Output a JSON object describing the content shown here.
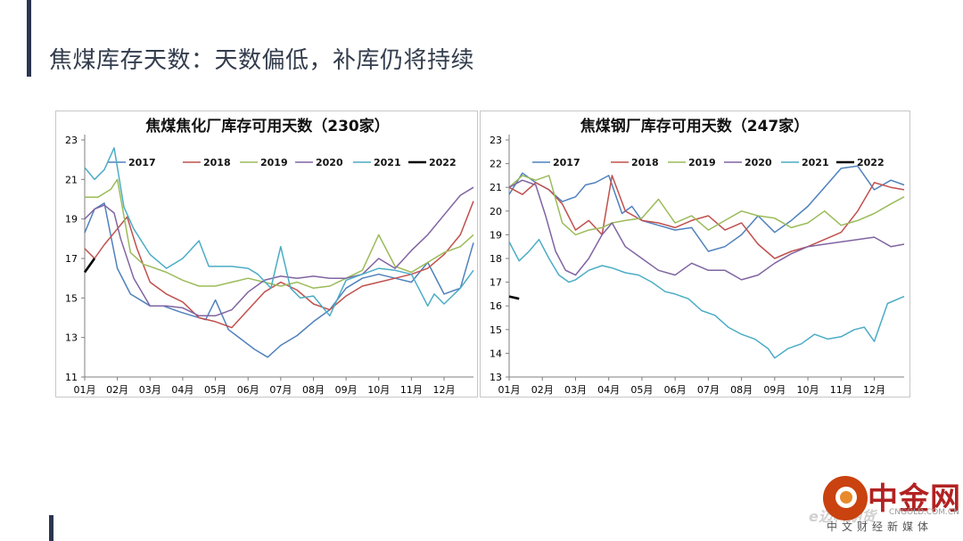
{
  "page": {
    "title": "焦煤库存天数：天数偏低，补库仍将持续"
  },
  "watermark": {
    "name": "中金网",
    "faint": "e迈科期货",
    "url": "CNGOLD.COM.CN",
    "sub": "中文财经新媒体"
  },
  "colors": {
    "2017": "#4f81bd",
    "2018": "#c0504d",
    "2019": "#9bbb59",
    "2020": "#8064a2",
    "2021": "#4bacc6",
    "2022": "#000000"
  },
  "chart_data": [
    {
      "type": "line",
      "title": "焦煤焦化厂库存可用天数（230家）",
      "ylim": [
        11,
        23
      ],
      "yticks": [
        "11",
        "13",
        "15",
        "17",
        "19",
        "21",
        "23"
      ],
      "xlim": [
        1,
        12.9
      ],
      "xtick_positions": [
        1,
        2,
        3,
        4,
        5,
        6,
        7,
        8,
        9,
        10,
        11,
        12
      ],
      "xticks": [
        "01月",
        "02月",
        "03月",
        "04月",
        "05月",
        "06月",
        "07月",
        "08月",
        "09月",
        "10月",
        "11月",
        "12月"
      ],
      "grid": false,
      "legend": "top",
      "series": [
        {
          "name": "2017",
          "x": [
            1.0,
            1.3,
            1.6,
            2.0,
            2.4,
            3.0,
            3.4,
            3.9,
            4.3,
            4.7,
            5.0,
            5.4,
            5.8,
            6.2,
            6.6,
            7.0,
            7.5,
            8.0,
            8.5,
            9.0,
            9.5,
            10.0,
            10.5,
            11.0,
            11.5,
            12.0,
            12.5,
            12.9
          ],
          "y": [
            18.3,
            19.5,
            19.8,
            16.5,
            15.2,
            14.6,
            14.6,
            14.3,
            14.1,
            13.9,
            14.9,
            13.4,
            12.9,
            12.4,
            12.0,
            12.6,
            13.1,
            13.8,
            14.4,
            15.5,
            16.0,
            16.2,
            16.0,
            15.8,
            16.8,
            15.2,
            15.5,
            17.8
          ]
        },
        {
          "name": "2018",
          "x": [
            1.0,
            1.3,
            1.6,
            2.0,
            2.3,
            2.6,
            3.0,
            3.5,
            4.0,
            4.5,
            5.0,
            5.5,
            6.0,
            6.5,
            7.0,
            7.5,
            8.0,
            8.5,
            9.0,
            9.5,
            10.0,
            10.5,
            11.0,
            11.5,
            12.0,
            12.5,
            12.9
          ],
          "y": [
            17.5,
            17.0,
            17.7,
            18.5,
            19.1,
            17.5,
            15.8,
            15.2,
            14.8,
            14.0,
            13.8,
            13.5,
            14.4,
            15.3,
            15.8,
            15.4,
            14.7,
            14.4,
            15.1,
            15.6,
            15.8,
            16.0,
            16.2,
            16.5,
            17.2,
            18.2,
            19.9
          ]
        },
        {
          "name": "2019",
          "x": [
            1.0,
            1.4,
            1.8,
            2.0,
            2.4,
            2.8,
            3.0,
            3.5,
            4.0,
            4.5,
            5.0,
            5.5,
            6.0,
            6.5,
            7.0,
            7.5,
            8.0,
            8.5,
            9.0,
            9.5,
            10.0,
            10.5,
            11.0,
            11.5,
            12.0,
            12.5,
            12.9
          ],
          "y": [
            20.1,
            20.1,
            20.5,
            21.0,
            17.3,
            16.7,
            16.6,
            16.3,
            15.9,
            15.6,
            15.6,
            15.8,
            16.0,
            15.8,
            15.6,
            15.8,
            15.5,
            15.6,
            16.0,
            16.4,
            18.2,
            16.6,
            16.3,
            16.8,
            17.3,
            17.6,
            18.2
          ]
        },
        {
          "name": "2020",
          "x": [
            1.0,
            1.3,
            1.6,
            1.9,
            2.1,
            2.5,
            3.0,
            3.5,
            4.0,
            4.5,
            5.0,
            5.5,
            6.0,
            6.5,
            7.0,
            7.5,
            8.0,
            8.5,
            9.0,
            9.5,
            10.0,
            10.5,
            11.0,
            11.5,
            12.0,
            12.5,
            12.9
          ],
          "y": [
            19.0,
            19.5,
            19.7,
            19.3,
            18.0,
            16.0,
            14.6,
            14.6,
            14.5,
            14.1,
            14.1,
            14.4,
            15.3,
            15.9,
            16.1,
            16.0,
            16.1,
            16.0,
            16.0,
            16.2,
            17.0,
            16.5,
            17.4,
            18.2,
            19.2,
            20.2,
            20.6
          ]
        },
        {
          "name": "2021",
          "x": [
            1.0,
            1.3,
            1.6,
            1.9,
            2.2,
            2.5,
            3.0,
            3.5,
            4.0,
            4.5,
            4.8,
            5.1,
            5.5,
            6.0,
            6.3,
            6.7,
            7.0,
            7.3,
            7.6,
            8.0,
            8.5,
            9.0,
            9.5,
            10.0,
            10.5,
            11.0,
            11.5,
            11.7,
            12.0,
            12.5,
            12.9
          ],
          "y": [
            21.6,
            21.0,
            21.5,
            22.6,
            19.6,
            18.5,
            17.2,
            16.5,
            17.0,
            17.9,
            16.6,
            16.6,
            16.6,
            16.5,
            16.2,
            15.5,
            17.6,
            15.5,
            15.0,
            15.1,
            14.1,
            15.9,
            16.2,
            16.5,
            16.4,
            16.2,
            14.6,
            15.2,
            14.7,
            15.5,
            16.4
          ]
        },
        {
          "name": "2022",
          "x": [
            1.0,
            1.3
          ],
          "y": [
            16.3,
            17.0
          ]
        }
      ]
    },
    {
      "type": "line",
      "title": "焦煤钢厂库存可用天数（247家）",
      "ylim": [
        13,
        23
      ],
      "yticks": [
        "13",
        "14",
        "15",
        "16",
        "17",
        "18",
        "19",
        "20",
        "21",
        "22",
        "23"
      ],
      "xlim": [
        1,
        12.9
      ],
      "xtick_positions": [
        1,
        2,
        3,
        4,
        5,
        6,
        7,
        8,
        9,
        10,
        11,
        12
      ],
      "xticks": [
        "01月",
        "02月",
        "03月",
        "04月",
        "05月",
        "06月",
        "07月",
        "08月",
        "09月",
        "10月",
        "11月",
        "12月"
      ],
      "grid": false,
      "legend": "top",
      "series": [
        {
          "name": "2017",
          "x": [
            1.0,
            1.4,
            1.8,
            2.2,
            2.6,
            3.0,
            3.3,
            3.6,
            4.0,
            4.4,
            4.7,
            5.0,
            5.5,
            6.0,
            6.5,
            7.0,
            7.5,
            8.0,
            8.5,
            9.0,
            9.5,
            10.0,
            10.5,
            11.0,
            11.5,
            12.0,
            12.5,
            12.9
          ],
          "y": [
            20.7,
            21.6,
            21.2,
            20.9,
            20.4,
            20.6,
            21.1,
            21.2,
            21.5,
            19.9,
            20.2,
            19.6,
            19.4,
            19.2,
            19.3,
            18.3,
            18.5,
            19.0,
            19.8,
            19.1,
            19.6,
            20.2,
            21.0,
            21.8,
            21.9,
            20.9,
            21.3,
            21.1
          ]
        },
        {
          "name": "2018",
          "x": [
            1.0,
            1.4,
            1.8,
            2.2,
            2.6,
            3.0,
            3.4,
            3.8,
            4.1,
            4.5,
            5.0,
            5.5,
            6.0,
            6.5,
            7.0,
            7.5,
            8.0,
            8.5,
            9.0,
            9.5,
            10.0,
            10.5,
            11.0,
            11.5,
            12.0,
            12.5,
            12.9
          ],
          "y": [
            21.0,
            20.7,
            21.2,
            20.9,
            20.3,
            19.2,
            19.6,
            19.0,
            21.5,
            20.0,
            19.6,
            19.5,
            19.3,
            19.6,
            19.8,
            19.2,
            19.5,
            18.6,
            18.0,
            18.3,
            18.5,
            18.8,
            19.1,
            20.0,
            21.2,
            21.0,
            20.9
          ]
        },
        {
          "name": "2019",
          "x": [
            1.0,
            1.4,
            1.8,
            2.2,
            2.6,
            3.0,
            3.4,
            3.8,
            4.1,
            4.5,
            5.0,
            5.5,
            6.0,
            6.5,
            7.0,
            7.5,
            8.0,
            8.5,
            9.0,
            9.5,
            10.0,
            10.5,
            11.0,
            11.5,
            12.0,
            12.5,
            12.9
          ],
          "y": [
            21.0,
            21.5,
            21.3,
            21.5,
            19.5,
            19.0,
            19.2,
            19.3,
            19.5,
            19.6,
            19.7,
            20.5,
            19.5,
            19.8,
            19.2,
            19.6,
            20.0,
            19.8,
            19.7,
            19.3,
            19.5,
            20.0,
            19.4,
            19.6,
            19.9,
            20.3,
            20.6
          ]
        },
        {
          "name": "2020",
          "x": [
            1.0,
            1.4,
            1.8,
            2.1,
            2.4,
            2.7,
            3.0,
            3.4,
            3.8,
            4.1,
            4.5,
            5.0,
            5.5,
            6.0,
            6.5,
            7.0,
            7.5,
            8.0,
            8.5,
            9.0,
            9.5,
            10.0,
            10.5,
            11.0,
            11.5,
            12.0,
            12.5,
            12.9
          ],
          "y": [
            21.0,
            21.3,
            21.1,
            19.8,
            18.3,
            17.5,
            17.3,
            18.0,
            19.0,
            19.5,
            18.5,
            18.0,
            17.5,
            17.3,
            17.8,
            17.5,
            17.5,
            17.1,
            17.3,
            17.8,
            18.2,
            18.5,
            18.6,
            18.7,
            18.8,
            18.9,
            18.5,
            18.6
          ]
        },
        {
          "name": "2021",
          "x": [
            1.0,
            1.3,
            1.6,
            1.9,
            2.2,
            2.5,
            2.8,
            3.0,
            3.4,
            3.8,
            4.1,
            4.5,
            4.9,
            5.3,
            5.7,
            6.0,
            6.4,
            6.8,
            7.2,
            7.6,
            8.0,
            8.4,
            8.8,
            9.0,
            9.4,
            9.8,
            10.2,
            10.6,
            11.0,
            11.4,
            11.7,
            12.0,
            12.4,
            12.9
          ],
          "y": [
            18.7,
            17.9,
            18.3,
            18.8,
            18.0,
            17.3,
            17.0,
            17.1,
            17.5,
            17.7,
            17.6,
            17.4,
            17.3,
            17.0,
            16.6,
            16.5,
            16.3,
            15.8,
            15.6,
            15.1,
            14.8,
            14.6,
            14.2,
            13.8,
            14.2,
            14.4,
            14.8,
            14.6,
            14.7,
            15.0,
            15.1,
            14.5,
            16.1,
            16.4
          ]
        },
        {
          "name": "2022",
          "x": [
            1.0,
            1.3
          ],
          "y": [
            16.4,
            16.3
          ]
        }
      ]
    }
  ]
}
